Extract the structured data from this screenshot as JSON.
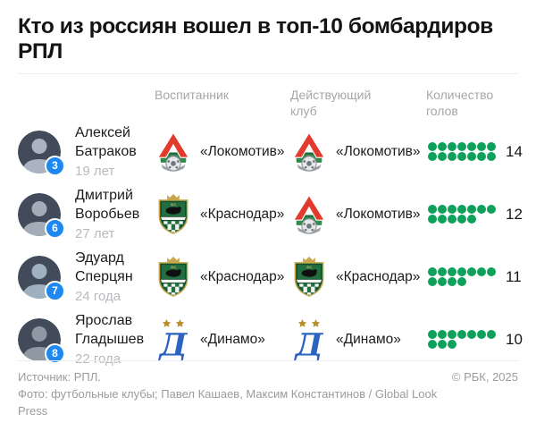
{
  "title": "Кто из россиян вошел в топ-10 бомбардиров РПЛ",
  "columns": {
    "youth": "Воспитанник",
    "current": "Действующий клуб",
    "goals": "Количество голов"
  },
  "rows": [
    {
      "rank": "3",
      "name": "Алексей Батраков",
      "age": "19 лет",
      "youth_club": "«Локомотив»",
      "youth_logo": "lokomotiv-logo",
      "current_club": "«Локомотив»",
      "current_logo": "lokomotiv-logo",
      "goals": 14
    },
    {
      "rank": "6",
      "name": "Дмитрий Воробьев",
      "age": "27 лет",
      "youth_club": "«Краснодар»",
      "youth_logo": "krasnodar-logo",
      "current_club": "«Локомотив»",
      "current_logo": "lokomotiv-logo",
      "goals": 12
    },
    {
      "rank": "7",
      "name": "Эдуард Сперцян",
      "age": "24 года",
      "youth_club": "«Краснодар»",
      "youth_logo": "krasnodar-logo",
      "current_club": "«Краснодар»",
      "current_logo": "krasnodar-logo",
      "goals": 11
    },
    {
      "rank": "8",
      "name": "Ярослав Гладышев",
      "age": "22 года",
      "youth_club": "«Динамо»",
      "youth_logo": "dynamo-logo",
      "current_club": "«Динамо»",
      "current_logo": "dynamo-logo",
      "goals": 10
    }
  ],
  "chart_data": {
    "type": "table",
    "title": "Кто из россиян вошел в топ-10 бомбардиров РПЛ",
    "categories": [
      "Алексей Батраков",
      "Дмитрий Воробьев",
      "Эдуард Сперцян",
      "Ярослав Гладышев"
    ],
    "values": [
      14,
      12,
      11,
      10
    ],
    "series_label": "Количество голов",
    "ranks_in_top10": [
      3,
      6,
      7,
      8
    ],
    "youth_clubs": [
      "«Локомотив»",
      "«Краснодар»",
      "«Краснодар»",
      "«Динамо»"
    ],
    "current_clubs": [
      "«Локомотив»",
      "«Локомотив»",
      "«Краснодар»",
      "«Динамо»"
    ]
  },
  "colors": {
    "goal_dot_green": "#0da15c",
    "rank_badge_blue": "#1e87f0",
    "header_gray": "#a6a6ab",
    "footer_gray": "#9b9ba1"
  },
  "footer": {
    "source": "Источник: РПЛ.",
    "photo_credit": "Фото: футбольные клубы; Павел Кашаев, Максим Константинов / Global Look Press",
    "copyright": "© РБК, 2025"
  }
}
